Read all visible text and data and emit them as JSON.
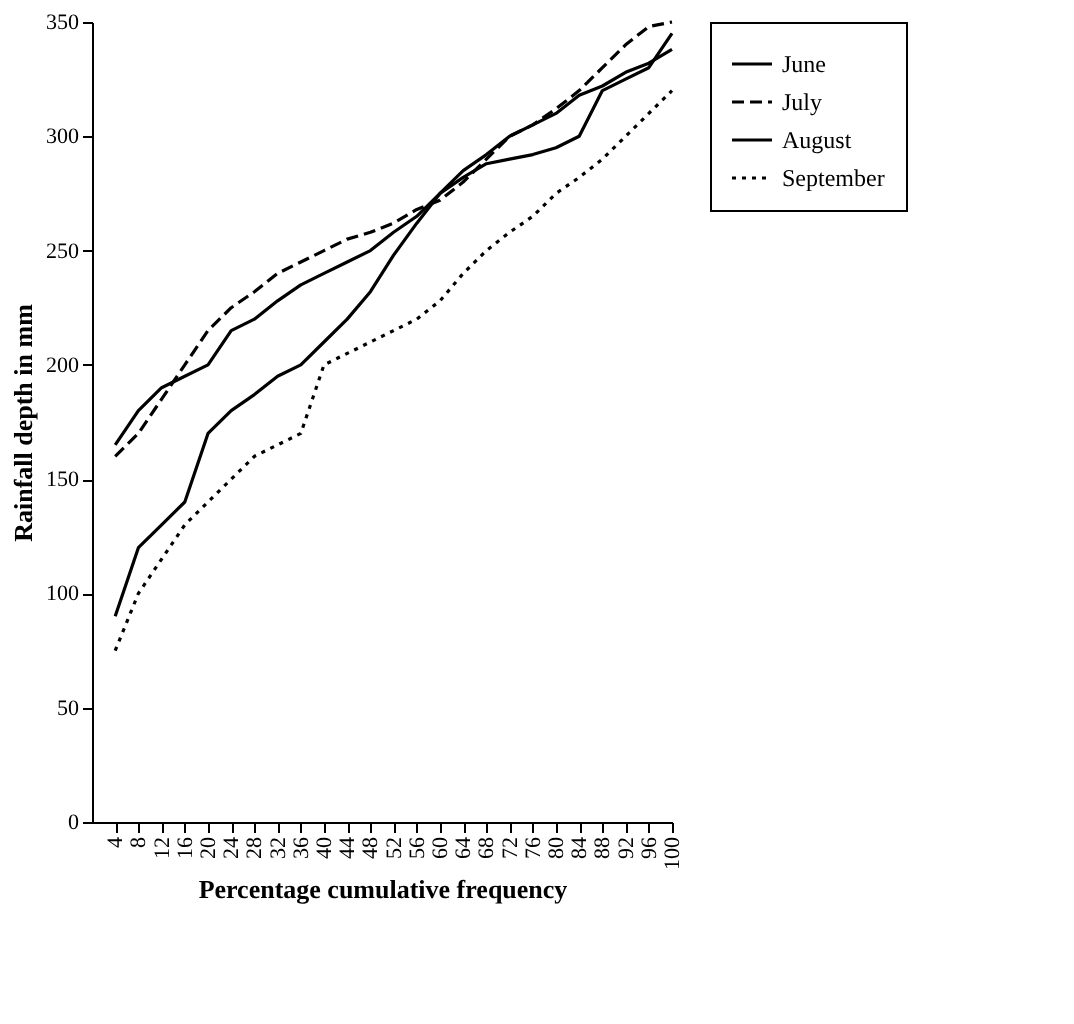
{
  "chart_data": {
    "type": "line",
    "xlabel": "Percentage cumulative frequency",
    "ylabel": "Rainfall depth in mm",
    "x": [
      4,
      8,
      12,
      16,
      20,
      24,
      28,
      32,
      36,
      40,
      44,
      48,
      52,
      56,
      60,
      64,
      68,
      72,
      76,
      80,
      84,
      88,
      92,
      96,
      100
    ],
    "series": [
      {
        "name": "June",
        "color": "#000000",
        "line_style": "solid",
        "values": [
          165,
          180,
          190,
          195,
          200,
          215,
          220,
          228,
          235,
          240,
          245,
          250,
          258,
          265,
          275,
          285,
          292,
          300,
          305,
          310,
          318,
          322,
          328,
          332,
          338
        ]
      },
      {
        "name": "July",
        "color": "#000000",
        "line_style": "dashed",
        "values": [
          160,
          170,
          185,
          200,
          215,
          225,
          232,
          240,
          245,
          250,
          255,
          258,
          262,
          268,
          272,
          280,
          290,
          300,
          305,
          312,
          320,
          330,
          340,
          348,
          350
        ]
      },
      {
        "name": "August",
        "color": "#000000",
        "line_style": "solid",
        "values": [
          90,
          120,
          130,
          140,
          170,
          180,
          187,
          195,
          200,
          210,
          220,
          232,
          248,
          262,
          275,
          282,
          288,
          290,
          292,
          295,
          300,
          320,
          325,
          330,
          345
        ]
      },
      {
        "name": "September",
        "color": "#000000",
        "line_style": "dotted",
        "values": [
          75,
          100,
          115,
          130,
          140,
          150,
          160,
          165,
          170,
          200,
          205,
          210,
          215,
          220,
          228,
          240,
          250,
          258,
          265,
          275,
          282,
          290,
          300,
          310,
          320
        ]
      }
    ],
    "xlim": [
      0,
      100
    ],
    "xticks": [
      4,
      8,
      12,
      16,
      20,
      24,
      28,
      32,
      36,
      40,
      44,
      48,
      52,
      56,
      60,
      64,
      68,
      72,
      76,
      80,
      84,
      88,
      92,
      96,
      100
    ],
    "ylim": [
      0,
      350
    ],
    "yticks": [
      0,
      50,
      100,
      150,
      200,
      250,
      300,
      350
    ],
    "grid": false,
    "legend": "right"
  }
}
